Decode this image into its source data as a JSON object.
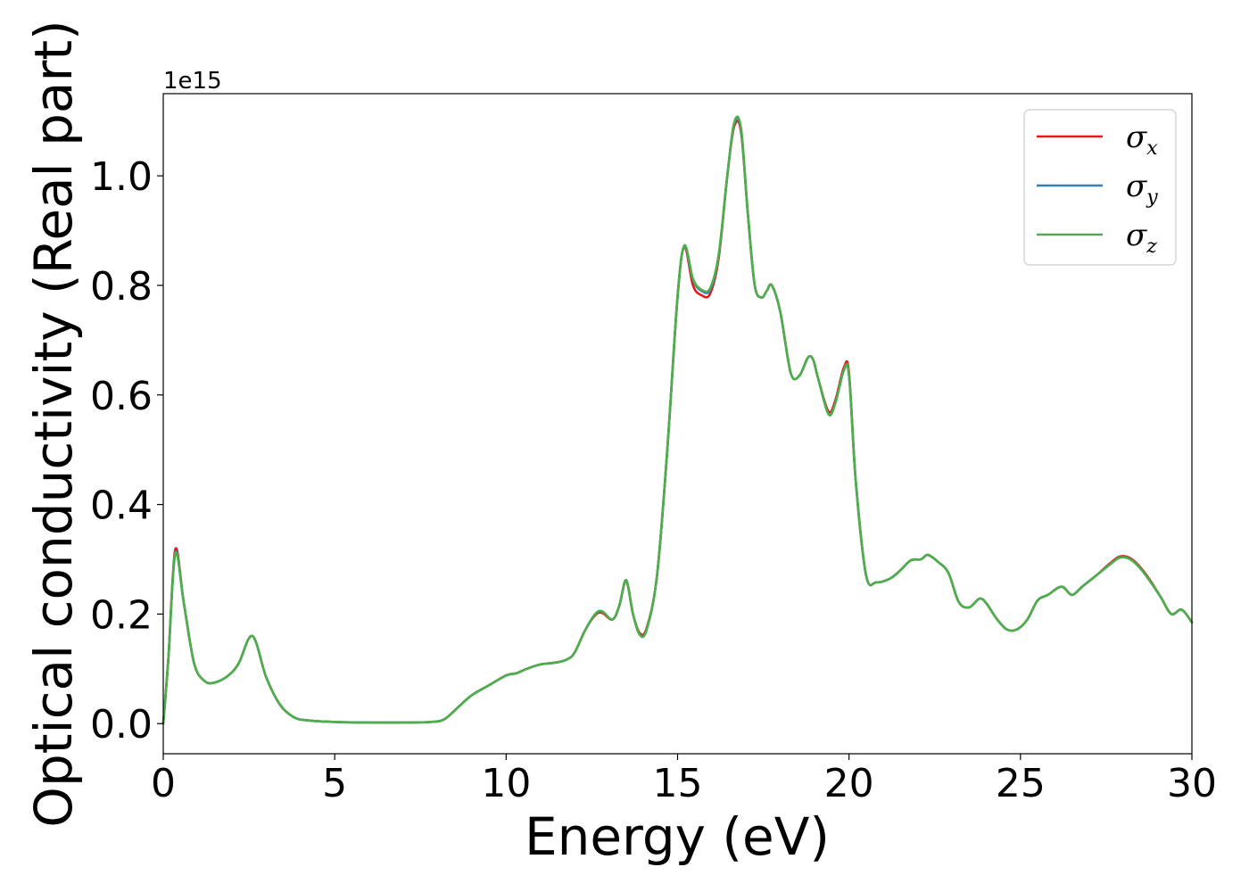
{
  "chart_data": {
    "type": "line",
    "title": "",
    "xlabel": "Energy (eV)",
    "ylabel": "Optical conductivity (Real part)",
    "y_offset_label": "1e15",
    "xlim": [
      0,
      30
    ],
    "ylim": [
      -0.055,
      1.15
    ],
    "xticks": [
      0,
      5,
      10,
      15,
      20,
      25,
      30
    ],
    "yticks": [
      0.0,
      0.2,
      0.4,
      0.6,
      0.8,
      1.0
    ],
    "xtick_labels": [
      "0",
      "5",
      "10",
      "15",
      "20",
      "25",
      "30"
    ],
    "ytick_labels": [
      "0.0",
      "0.2",
      "0.4",
      "0.6",
      "0.8",
      "1.0"
    ],
    "grid": false,
    "legend_position": "top-right",
    "x": [
      0,
      0.15,
      0.35,
      0.6,
      0.9,
      1.2,
      1.5,
      1.9,
      2.2,
      2.6,
      3.0,
      3.4,
      3.8,
      4.2,
      5,
      6,
      7,
      7.8,
      8.2,
      8.6,
      9,
      9.5,
      10,
      10.3,
      10.6,
      11,
      11.5,
      11.8,
      12.0,
      12.3,
      12.6,
      12.8,
      13.1,
      13.3,
      13.5,
      13.7,
      13.9,
      14.1,
      14.4,
      14.7,
      15.0,
      15.2,
      15.45,
      15.7,
      15.95,
      16.2,
      16.45,
      16.65,
      16.85,
      17.05,
      17.25,
      17.45,
      17.6,
      17.75,
      18.0,
      18.3,
      18.55,
      18.8,
      18.95,
      19.1,
      19.4,
      19.6,
      19.85,
      20.0,
      20.2,
      20.5,
      20.8,
      21.2,
      21.5,
      21.8,
      22.1,
      22.3,
      22.6,
      22.9,
      23.2,
      23.5,
      23.8,
      24.0,
      24.3,
      24.6,
      24.9,
      25.2,
      25.5,
      25.8,
      26.2,
      26.5,
      26.8,
      27.2,
      27.6,
      27.9,
      28.2,
      28.5,
      28.8,
      29.1,
      29.4,
      29.7,
      30
    ],
    "series": [
      {
        "name": "σx",
        "sub": "x",
        "color": "#e41a1c",
        "values": [
          0.0,
          0.12,
          0.318,
          0.22,
          0.11,
          0.078,
          0.075,
          0.088,
          0.11,
          0.16,
          0.085,
          0.035,
          0.012,
          0.006,
          0.003,
          0.002,
          0.002,
          0.003,
          0.008,
          0.03,
          0.052,
          0.07,
          0.088,
          0.092,
          0.1,
          0.108,
          0.112,
          0.118,
          0.13,
          0.17,
          0.198,
          0.202,
          0.19,
          0.215,
          0.26,
          0.2,
          0.165,
          0.175,
          0.27,
          0.5,
          0.78,
          0.87,
          0.8,
          0.782,
          0.785,
          0.85,
          1.0,
          1.09,
          1.08,
          0.93,
          0.8,
          0.778,
          0.79,
          0.8,
          0.75,
          0.64,
          0.635,
          0.668,
          0.665,
          0.63,
          0.57,
          0.59,
          0.65,
          0.64,
          0.44,
          0.27,
          0.258,
          0.265,
          0.28,
          0.298,
          0.3,
          0.308,
          0.295,
          0.275,
          0.222,
          0.212,
          0.228,
          0.22,
          0.192,
          0.172,
          0.172,
          0.19,
          0.225,
          0.235,
          0.25,
          0.235,
          0.25,
          0.27,
          0.292,
          0.305,
          0.302,
          0.285,
          0.26,
          0.23,
          0.2,
          0.208,
          0.185
        ]
      },
      {
        "name": "σy",
        "sub": "y",
        "color": "#377eb8",
        "values": [
          0.0,
          0.12,
          0.312,
          0.22,
          0.11,
          0.078,
          0.075,
          0.088,
          0.11,
          0.16,
          0.085,
          0.035,
          0.012,
          0.006,
          0.003,
          0.002,
          0.002,
          0.003,
          0.008,
          0.03,
          0.052,
          0.07,
          0.088,
          0.092,
          0.1,
          0.108,
          0.112,
          0.118,
          0.13,
          0.17,
          0.2,
          0.205,
          0.19,
          0.215,
          0.262,
          0.2,
          0.162,
          0.172,
          0.27,
          0.5,
          0.78,
          0.872,
          0.81,
          0.79,
          0.792,
          0.855,
          1.0,
          1.095,
          1.085,
          0.93,
          0.8,
          0.778,
          0.79,
          0.8,
          0.75,
          0.64,
          0.635,
          0.668,
          0.665,
          0.63,
          0.565,
          0.585,
          0.645,
          0.635,
          0.44,
          0.27,
          0.258,
          0.265,
          0.28,
          0.298,
          0.3,
          0.308,
          0.295,
          0.275,
          0.222,
          0.212,
          0.228,
          0.22,
          0.192,
          0.172,
          0.172,
          0.19,
          0.225,
          0.235,
          0.25,
          0.235,
          0.25,
          0.27,
          0.29,
          0.303,
          0.3,
          0.283,
          0.258,
          0.23,
          0.2,
          0.208,
          0.185
        ]
      },
      {
        "name": "σz",
        "sub": "z",
        "color": "#4daf4a",
        "values": [
          0.0,
          0.12,
          0.31,
          0.22,
          0.11,
          0.078,
          0.075,
          0.088,
          0.11,
          0.16,
          0.085,
          0.035,
          0.012,
          0.006,
          0.003,
          0.002,
          0.002,
          0.003,
          0.008,
          0.03,
          0.052,
          0.07,
          0.088,
          0.092,
          0.1,
          0.108,
          0.112,
          0.118,
          0.13,
          0.17,
          0.2,
          0.205,
          0.19,
          0.215,
          0.262,
          0.2,
          0.162,
          0.172,
          0.27,
          0.5,
          0.78,
          0.873,
          0.812,
          0.792,
          0.795,
          0.857,
          1.0,
          1.097,
          1.087,
          0.93,
          0.8,
          0.778,
          0.79,
          0.8,
          0.75,
          0.64,
          0.635,
          0.668,
          0.665,
          0.63,
          0.565,
          0.585,
          0.645,
          0.635,
          0.44,
          0.27,
          0.258,
          0.265,
          0.28,
          0.298,
          0.3,
          0.308,
          0.295,
          0.275,
          0.222,
          0.212,
          0.228,
          0.22,
          0.192,
          0.172,
          0.172,
          0.19,
          0.225,
          0.235,
          0.25,
          0.235,
          0.25,
          0.27,
          0.29,
          0.303,
          0.3,
          0.283,
          0.258,
          0.23,
          0.2,
          0.208,
          0.185
        ]
      }
    ]
  }
}
